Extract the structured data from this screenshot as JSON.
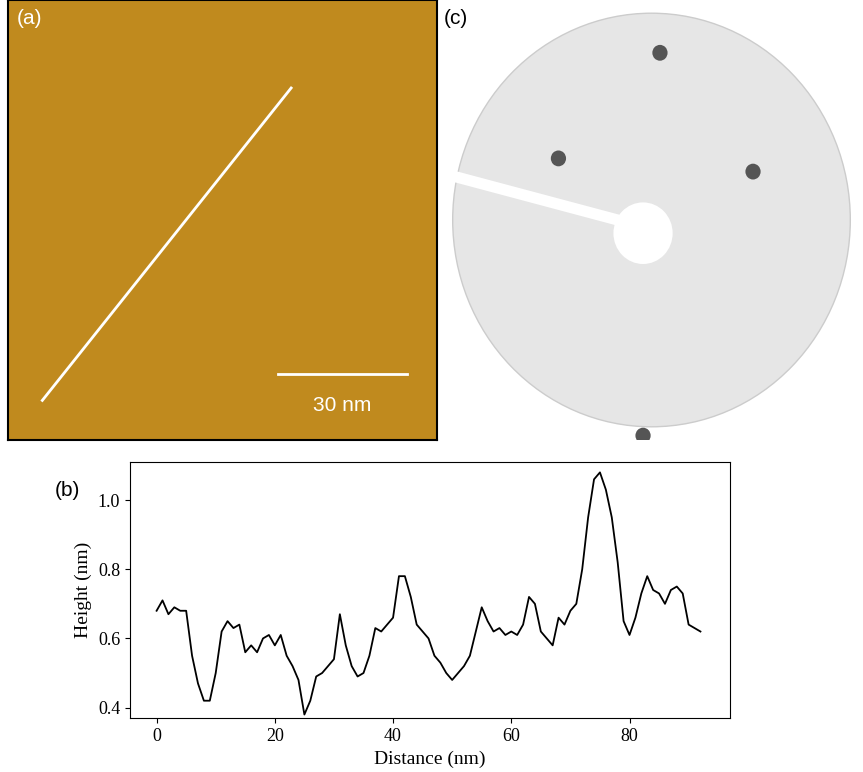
{
  "chart_data": {
    "type": "line",
    "x": [
      0,
      1,
      2,
      3,
      4,
      5,
      6,
      7,
      8,
      9,
      10,
      11,
      12,
      13,
      14,
      15,
      16,
      17,
      18,
      19,
      20,
      21,
      22,
      23,
      24,
      25,
      26,
      27,
      28,
      29,
      30,
      31,
      32,
      33,
      34,
      35,
      36,
      37,
      38,
      39,
      40,
      41,
      42,
      43,
      44,
      45,
      46,
      47,
      48,
      49,
      50,
      51,
      52,
      53,
      54,
      55,
      56,
      57,
      58,
      59,
      60,
      61,
      62,
      63,
      64,
      65,
      66,
      67,
      68,
      69,
      70,
      71,
      72,
      73,
      74,
      75,
      76,
      77,
      78,
      79,
      80,
      81,
      82,
      83,
      84,
      85,
      86,
      87,
      88,
      89,
      90,
      91,
      92
    ],
    "values": [
      0.68,
      0.71,
      0.67,
      0.69,
      0.68,
      0.68,
      0.55,
      0.47,
      0.42,
      0.42,
      0.5,
      0.62,
      0.65,
      0.63,
      0.64,
      0.56,
      0.58,
      0.56,
      0.6,
      0.61,
      0.58,
      0.61,
      0.55,
      0.52,
      0.48,
      0.38,
      0.42,
      0.49,
      0.5,
      0.52,
      0.54,
      0.67,
      0.58,
      0.52,
      0.49,
      0.5,
      0.55,
      0.63,
      0.62,
      0.64,
      0.66,
      0.78,
      0.78,
      0.72,
      0.64,
      0.62,
      0.6,
      0.55,
      0.53,
      0.5,
      0.48,
      0.5,
      0.52,
      0.55,
      0.62,
      0.69,
      0.65,
      0.62,
      0.63,
      0.61,
      0.62,
      0.61,
      0.64,
      0.72,
      0.7,
      0.62,
      0.6,
      0.58,
      0.66,
      0.64,
      0.68,
      0.7,
      0.8,
      0.95,
      1.06,
      1.08,
      1.03,
      0.95,
      0.82,
      0.65,
      0.61,
      0.66,
      0.73,
      0.78,
      0.74,
      0.73,
      0.7,
      0.74,
      0.75,
      0.73,
      0.64,
      0.63,
      0.62
    ],
    "color": "#000000",
    "x_label": "Distance (nm)",
    "y_label": "Height (nm)",
    "xlim": [
      -4.5,
      97
    ],
    "ylim": [
      0.37,
      1.11
    ],
    "xticks": [
      0,
      20,
      40,
      60,
      80
    ],
    "yticks": [
      0.4,
      0.6,
      0.8,
      {
        "value": 1.0,
        "label": "1.0"
      }
    ]
  },
  "panels": {
    "a": "(a)",
    "b": "(b)",
    "c": "(c)"
  },
  "scale_bar": "30 nm"
}
